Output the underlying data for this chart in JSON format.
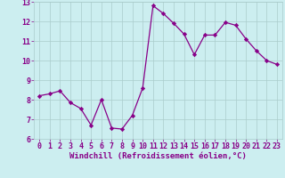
{
  "x": [
    0,
    1,
    2,
    3,
    4,
    5,
    6,
    7,
    8,
    9,
    10,
    11,
    12,
    13,
    14,
    15,
    16,
    17,
    18,
    19,
    20,
    21,
    22,
    23
  ],
  "y": [
    8.2,
    8.3,
    8.45,
    7.85,
    7.55,
    6.7,
    8.0,
    6.55,
    6.5,
    7.2,
    8.6,
    12.8,
    12.4,
    11.9,
    11.35,
    10.3,
    11.3,
    11.3,
    11.95,
    11.8,
    11.1,
    10.5,
    10.0,
    9.8
  ],
  "line_color": "#880088",
  "marker": "D",
  "marker_size": 2.2,
  "bg_color": "#cceef0",
  "grid_color": "#aacccc",
  "xlabel": "Windchill (Refroidissement éolien,°C)",
  "ylim": [
    6,
    13
  ],
  "xlim_min": -0.5,
  "xlim_max": 23.5,
  "yticks": [
    6,
    7,
    8,
    9,
    10,
    11,
    12,
    13
  ],
  "xticks": [
    0,
    1,
    2,
    3,
    4,
    5,
    6,
    7,
    8,
    9,
    10,
    11,
    12,
    13,
    14,
    15,
    16,
    17,
    18,
    19,
    20,
    21,
    22,
    23
  ],
  "xlabel_fontsize": 6.5,
  "tick_fontsize": 6.0,
  "label_color": "#880088"
}
